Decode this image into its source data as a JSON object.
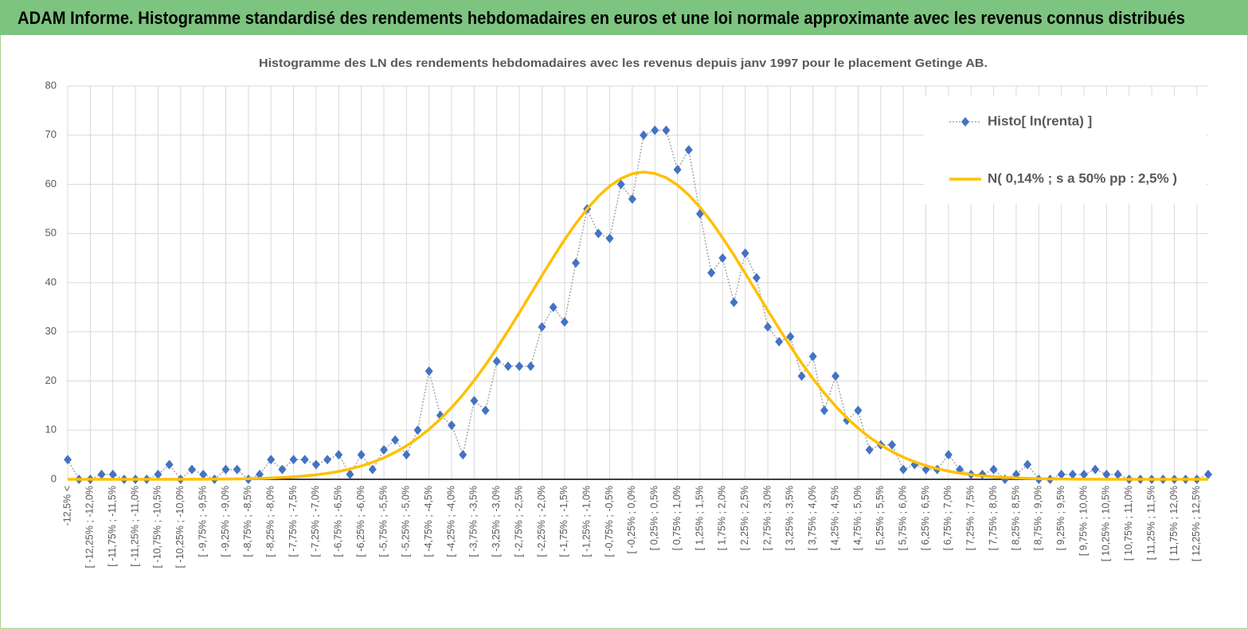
{
  "header": {
    "title": "ADAM Informe. Histogramme standardisé des rendements hebdomadaires en euros et une loi normale approximante avec les revenus connus distribués"
  },
  "chart_data": {
    "type": "line",
    "title": "Histogramme des LN des rendements hebdomadaires avec les revenus depuis janv 1997 pour le placement Getinge AB.",
    "categories": [
      "-12,5% <",
      null,
      "[ -12,25% ; -12,0%",
      null,
      "[ -11,75% ; -11,5%",
      null,
      "[ -11,25% ; -11,0%",
      null,
      "[ -10,75% ; -10,5%",
      null,
      "[ -10,25% ; -10,0%",
      null,
      "[ -9,75% ; -9,5%",
      null,
      "[ -9,25% ; -9,0%",
      null,
      "[ -8,75% ; -8,5%",
      null,
      "[ -8,25% ; -8,0%",
      null,
      "[ -7,75% ; -7,5%",
      null,
      "[ -7,25% ; -7,0%",
      null,
      "[ -6,75% ; -6,5%",
      null,
      "[ -6,25% ; -6,0%",
      null,
      "[ -5,75% ; -5,5%",
      null,
      "[ -5,25% ; -5,0%",
      null,
      "[ -4,75% ; -4,5%",
      null,
      "[ -4,25% ; -4,0%",
      null,
      "[ -3,75% ; -3,5%",
      null,
      "[ -3,25% ; -3,0%",
      null,
      "[ -2,75% ; -2,5%",
      null,
      "[ -2,25% ; -2,0%",
      null,
      "[ -1,75% ; -1,5%",
      null,
      "[ -1,25% ; -1,0%",
      null,
      "[ -0,75% ; -0,5%",
      null,
      "[ -0,25% ; 0,0%",
      null,
      "[ 0,25% ; 0,5%",
      null,
      "[ 0,75% ; 1,0%",
      null,
      "[ 1,25% ; 1,5%",
      null,
      "[ 1,75% ; 2,0%",
      null,
      "[ 2,25% ; 2,5%",
      null,
      "[ 2,75% ; 3,0%",
      null,
      "[ 3,25% ; 3,5%",
      null,
      "[ 3,75% ; 4,0%",
      null,
      "[ 4,25% ; 4,5%",
      null,
      "[ 4,75% ; 5,0%",
      null,
      "[ 5,25% ; 5,5%",
      null,
      "[ 5,75% ; 6,0%",
      null,
      "[ 6,25% ; 6,5%",
      null,
      "[ 6,75% ; 7,0%",
      null,
      "[ 7,25% ; 7,5%",
      null,
      "[ 7,75% ; 8,0%",
      null,
      "[ 8,25% ; 8,5%",
      null,
      "[ 8,75% ; 9,0%",
      null,
      "[ 9,25% ; 9,5%",
      null,
      "[ 9,75% ; 10,0%",
      null,
      "[ 10,25% ; 10,5%",
      null,
      "[ 10,75% ; 11,0%",
      null,
      "[ 11,25% ; 11,5%",
      null,
      "[ 11,75% ; 12,0%",
      null,
      "[ 12,25% ; 12,5%",
      null
    ],
    "series": [
      {
        "name": "Histo[ ln(renta) ]",
        "color": "#4472c4",
        "line_color": "#a6a6a6",
        "marker": "diamond",
        "values": [
          4,
          0,
          0,
          1,
          1,
          0,
          0,
          0,
          1,
          3,
          0,
          2,
          1,
          0,
          2,
          2,
          0,
          1,
          4,
          2,
          4,
          4,
          3,
          4,
          5,
          1,
          5,
          2,
          6,
          8,
          5,
          10,
          22,
          13,
          11,
          5,
          16,
          14,
          24,
          23,
          23,
          23,
          31,
          35,
          32,
          44,
          55,
          50,
          49,
          60,
          57,
          70,
          71,
          71,
          63,
          67,
          54,
          42,
          45,
          36,
          46,
          41,
          31,
          28,
          29,
          21,
          25,
          14,
          21,
          12,
          14,
          6,
          7,
          7,
          2,
          3,
          2,
          2,
          5,
          2,
          1,
          1,
          2,
          0,
          1,
          3,
          0,
          0,
          1,
          1,
          1,
          2,
          1,
          1,
          0,
          0,
          0,
          0,
          0,
          0,
          0,
          1
        ]
      },
      {
        "name": "N( 0,14% ; s a 50% pp : 2,5% )",
        "color": "#ffc000",
        "marker": "none",
        "values": [
          0,
          0,
          0,
          0,
          0,
          0,
          0,
          0,
          0.01,
          0.01,
          0.01,
          0.02,
          0.03,
          0.04,
          0.06,
          0.09,
          0.13,
          0.19,
          0.26,
          0.37,
          0.5,
          0.68,
          0.92,
          1.22,
          1.6,
          2.09,
          2.7,
          3.46,
          4.37,
          5.49,
          6.8,
          8.36,
          10.17,
          12.24,
          14.59,
          17.21,
          20.11,
          23.27,
          26.64,
          30.2,
          33.9,
          37.67,
          41.46,
          45.16,
          48.73,
          52.02,
          54.99,
          57.56,
          59.64,
          61.19,
          62.15,
          62.5,
          62.2,
          61.34,
          59.86,
          57.83,
          55.33,
          52.4,
          49.12,
          45.6,
          41.91,
          38.12,
          34.35,
          30.64,
          27.07,
          23.65,
          20.47,
          17.55,
          14.88,
          12.51,
          10.4,
          8.56,
          6.98,
          5.63,
          4.5,
          3.55,
          2.78,
          2.16,
          1.66,
          1.26,
          0.95,
          0.71,
          0.52,
          0.38,
          0.28,
          0.2,
          0.14,
          0.09,
          0.06,
          0.04,
          0.03,
          0.02,
          0.01,
          0.01,
          0,
          0,
          0,
          0,
          0,
          0,
          0,
          0
        ]
      }
    ],
    "ylim": [
      0,
      80
    ],
    "yticks": [
      0,
      10,
      20,
      30,
      40,
      50,
      60,
      70,
      80
    ],
    "grid": true,
    "legend": "upper right"
  }
}
